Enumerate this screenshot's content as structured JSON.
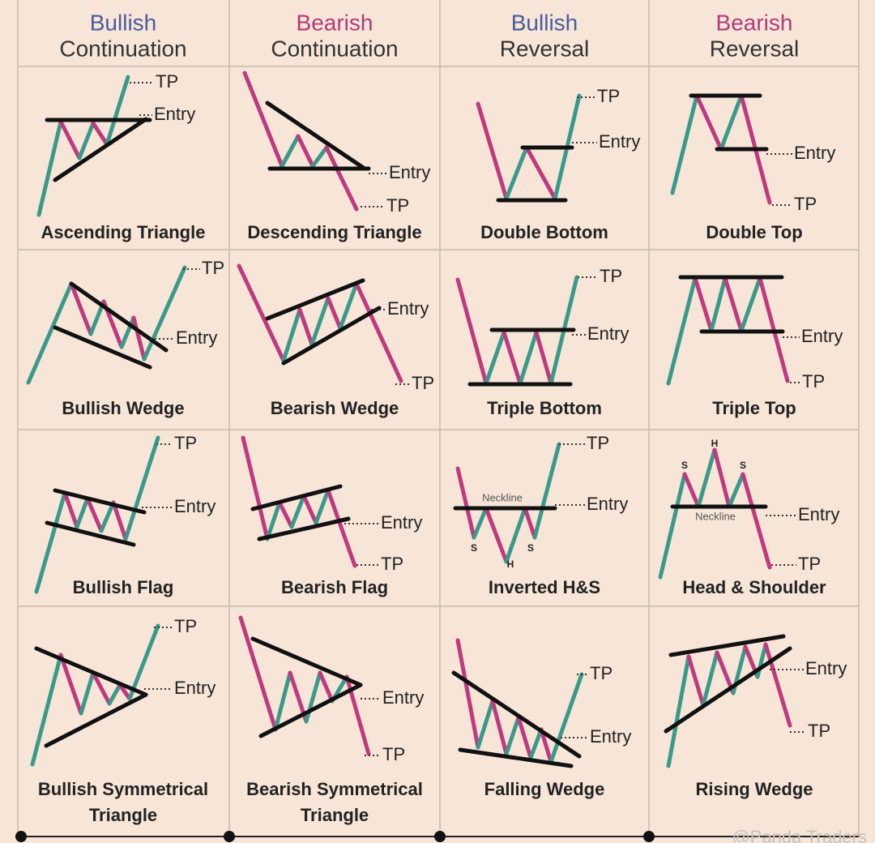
{
  "headers": [
    {
      "lines": [
        "Bullish",
        "Continuation"
      ]
    },
    {
      "lines": [
        "Bearish",
        "Continuation"
      ]
    },
    {
      "lines": [
        "Bullish",
        "Reversal"
      ]
    },
    {
      "lines": [
        "Bearish",
        "Reversal"
      ]
    }
  ],
  "patterns": [
    {
      "name": [
        "Ascending Triangle"
      ],
      "labels": [
        "TP",
        "Entry"
      ]
    },
    {
      "name": [
        "Descending Triangle"
      ],
      "labels": [
        "Entry",
        "TP"
      ]
    },
    {
      "name": [
        "Double Bottom"
      ],
      "labels": [
        "TP",
        "Entry"
      ]
    },
    {
      "name": [
        "Double Top"
      ],
      "labels": [
        "Entry",
        "TP"
      ]
    },
    {
      "name": [
        "Bullish Wedge"
      ],
      "labels": [
        "TP",
        "Entry"
      ]
    },
    {
      "name": [
        "Bearish Wedge"
      ],
      "labels": [
        "Entry",
        "TP"
      ]
    },
    {
      "name": [
        "Triple Bottom"
      ],
      "labels": [
        "TP",
        "Entry"
      ]
    },
    {
      "name": [
        "Triple Top"
      ],
      "labels": [
        "Entry",
        "TP"
      ]
    },
    {
      "name": [
        "Bullish Flag"
      ],
      "labels": [
        "TP",
        "Entry"
      ]
    },
    {
      "name": [
        "Bearish Flag"
      ],
      "labels": [
        "Entry",
        "TP"
      ]
    },
    {
      "name": [
        "Inverted H&S"
      ],
      "labels": [
        "TP",
        "Entry",
        "Neckline",
        "S",
        "S",
        "H"
      ]
    },
    {
      "name": [
        "Head & Shoulder"
      ],
      "labels": [
        "Entry",
        "TP",
        "Neckline",
        "S",
        "S",
        "H"
      ]
    },
    {
      "name": [
        "Bullish Symmetrical",
        "Triangle"
      ],
      "labels": [
        "TP",
        "Entry"
      ]
    },
    {
      "name": [
        "Bearish Symmetrical",
        "Triangle"
      ],
      "labels": [
        "Entry",
        "TP"
      ]
    },
    {
      "name": [
        "Falling Wedge"
      ],
      "labels": [
        "TP",
        "Entry"
      ]
    },
    {
      "name": [
        "Rising Wedge"
      ],
      "labels": [
        "Entry",
        "TP"
      ]
    }
  ],
  "watermark": "@Panda Traders"
}
